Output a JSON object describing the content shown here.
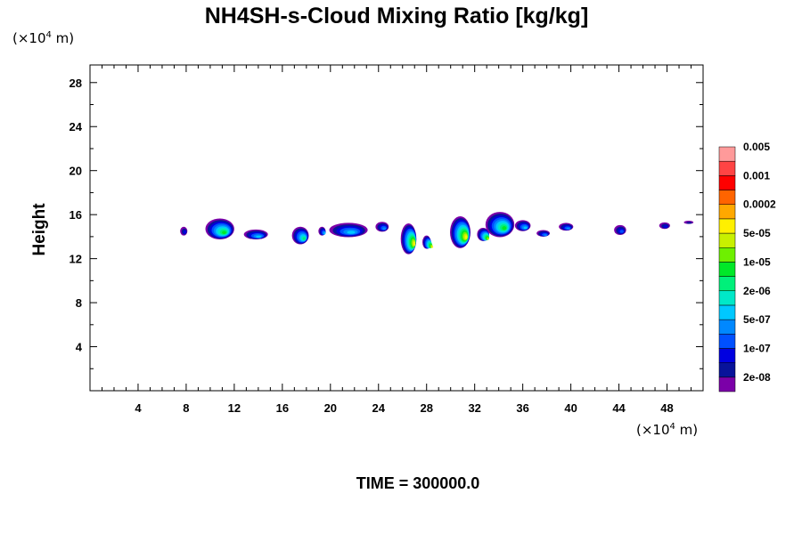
{
  "chart_data": {
    "type": "contour",
    "title": "NH4SH-s-Cloud Mixing Ratio [kg/kg]",
    "ylabel": "Height",
    "y_unit": {
      "prefix": "(×10",
      "exp": "4",
      "suffix": " m)"
    },
    "x_unit": {
      "prefix": "(×10",
      "exp": "4",
      "suffix": " m)"
    },
    "xlim": [
      0,
      51
    ],
    "ylim": [
      0,
      29.6
    ],
    "x_major_ticks": [
      4,
      8,
      12,
      16,
      20,
      24,
      28,
      32,
      36,
      40,
      44,
      48
    ],
    "x_tick_labels": [
      "4",
      "8",
      "12",
      "16",
      "20",
      "24",
      "28",
      "32",
      "36",
      "40",
      "44",
      "48"
    ],
    "y_major_ticks": [
      4,
      8,
      12,
      16,
      20,
      24,
      28
    ],
    "y_tick_labels": [
      "4",
      "8",
      "12",
      "16",
      "20",
      "24",
      "28"
    ],
    "footer": "TIME = 300000.0",
    "colorbar": {
      "colors": [
        "#7b00a8",
        "#08139a",
        "#0000e0",
        "#0050ff",
        "#0088ff",
        "#00c8ff",
        "#00e8c8",
        "#00f07a",
        "#00e828",
        "#6ef000",
        "#c8f000",
        "#fff000",
        "#ffa800",
        "#ff6400",
        "#ff0000",
        "#ff4444",
        "#ff9a9a"
      ],
      "labels": [
        "2e-08",
        "1e-07",
        "5e-07",
        "2e-06",
        "1e-05",
        "5e-05",
        "0.0002",
        "0.001",
        "0.005"
      ]
    },
    "cloud_cells": [
      {
        "x": 7.8,
        "y": 14.5,
        "w": 0.6,
        "h": 0.8,
        "peak": 2
      },
      {
        "x": 10.8,
        "y": 14.7,
        "w": 2.4,
        "h": 1.9,
        "peak": 8
      },
      {
        "x": 13.8,
        "y": 14.2,
        "w": 2.0,
        "h": 0.9,
        "peak": 5
      },
      {
        "x": 17.5,
        "y": 14.1,
        "w": 1.4,
        "h": 1.6,
        "peak": 7
      },
      {
        "x": 19.3,
        "y": 14.5,
        "w": 0.6,
        "h": 0.8,
        "peak": 5
      },
      {
        "x": 21.5,
        "y": 14.6,
        "w": 3.2,
        "h": 1.3,
        "peak": 5
      },
      {
        "x": 24.3,
        "y": 14.9,
        "w": 1.1,
        "h": 0.9,
        "peak": 4
      },
      {
        "x": 26.5,
        "y": 13.8,
        "w": 1.3,
        "h": 2.8,
        "peak": 11
      },
      {
        "x": 28.0,
        "y": 13.5,
        "w": 0.7,
        "h": 1.2,
        "peak": 11
      },
      {
        "x": 30.8,
        "y": 14.4,
        "w": 1.7,
        "h": 2.9,
        "peak": 11
      },
      {
        "x": 32.7,
        "y": 14.2,
        "w": 1.0,
        "h": 1.2,
        "peak": 10
      },
      {
        "x": 34.1,
        "y": 15.1,
        "w": 2.4,
        "h": 2.3,
        "peak": 8
      },
      {
        "x": 36.0,
        "y": 15.0,
        "w": 1.3,
        "h": 1.0,
        "peak": 5
      },
      {
        "x": 37.7,
        "y": 14.3,
        "w": 1.1,
        "h": 0.6,
        "peak": 4
      },
      {
        "x": 39.6,
        "y": 14.9,
        "w": 1.2,
        "h": 0.7,
        "peak": 4
      },
      {
        "x": 44.1,
        "y": 14.6,
        "w": 1.0,
        "h": 0.9,
        "peak": 3
      },
      {
        "x": 47.8,
        "y": 15.0,
        "w": 0.9,
        "h": 0.6,
        "peak": 2
      },
      {
        "x": 49.8,
        "y": 15.3,
        "w": 0.8,
        "h": 0.3,
        "peak": 1
      }
    ]
  }
}
